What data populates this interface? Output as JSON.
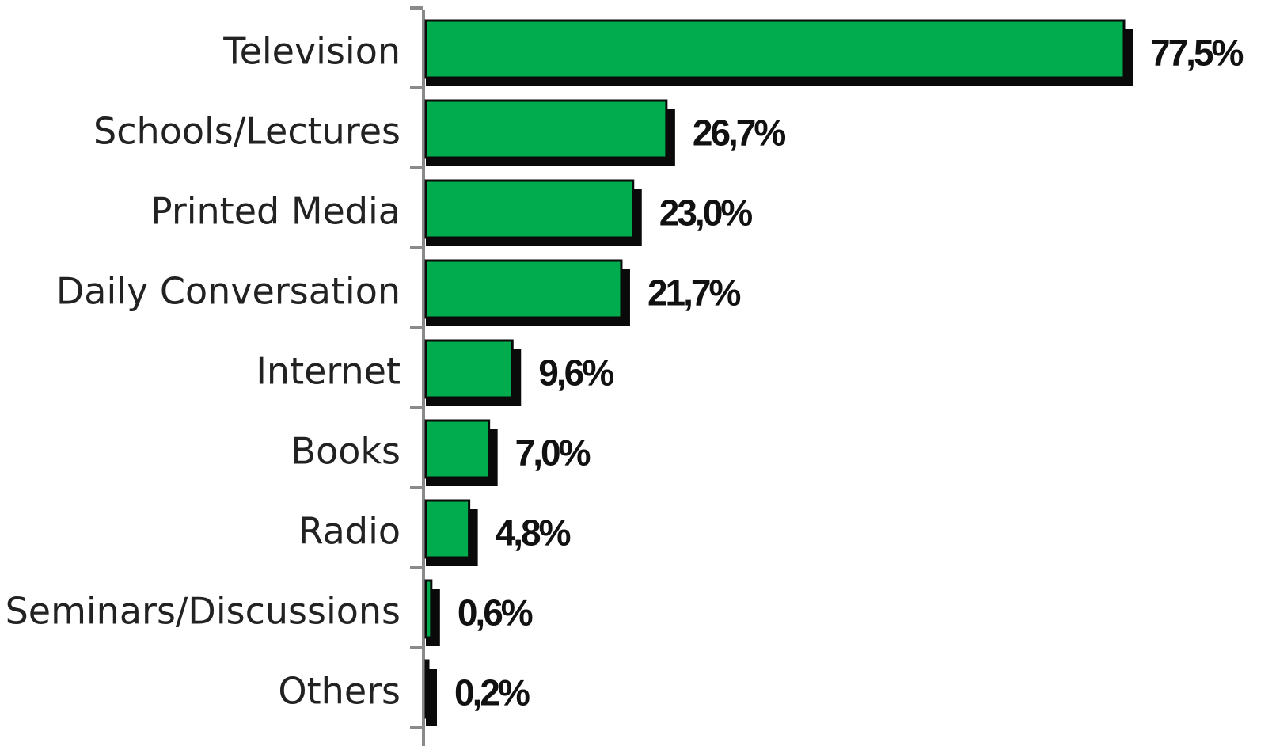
{
  "chart_data": {
    "type": "bar",
    "orientation": "horizontal",
    "categories": [
      "Television",
      "Schools/Lectures",
      "Printed Media",
      "Daily Conversation",
      "Internet",
      "Books",
      "Radio",
      "Seminars/Discussions",
      "Others"
    ],
    "values": [
      77.5,
      26.7,
      23.0,
      21.7,
      9.6,
      7.0,
      4.8,
      0.6,
      0.2
    ],
    "value_labels": [
      "77,5%",
      "26,7%",
      "23,0%",
      "21,7%",
      "9,6%",
      "7,0%",
      "4,8%",
      "0,6%",
      "0,2%"
    ],
    "unit": "%",
    "xlim": [
      0,
      80
    ],
    "grid": false,
    "legend": "none",
    "colors": {
      "bar": "#00ac4e",
      "bar_outline": "#0a0a0a",
      "shadow": "#0a0a0a",
      "axis": "#8a8a8a"
    }
  }
}
